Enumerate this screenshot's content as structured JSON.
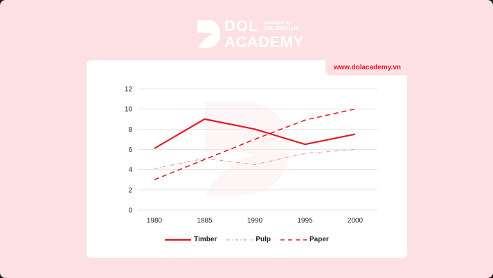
{
  "brand": {
    "name_line1": "DOL",
    "name_line2": "ACADEMY",
    "powered_line1": "powered by",
    "powered_line2": "DOL ĐÌNH LỰC",
    "logo_icon": "dol-d-logo-icon"
  },
  "card": {
    "url_badge": "www.dolacademy.vn"
  },
  "colors": {
    "background": "#fde0e4",
    "card": "#ffffff",
    "accent": "#e31b23",
    "grid": "#e6e6e6"
  },
  "chart_data": {
    "type": "line",
    "title": "",
    "xlabel": "",
    "ylabel": "",
    "x": [
      "1980",
      "1985",
      "1990",
      "1995",
      "2000"
    ],
    "yticks": [
      "0",
      "2",
      "4",
      "6",
      "8",
      "10",
      "12"
    ],
    "ylim": [
      0,
      12
    ],
    "grid": true,
    "legend_position": "bottom",
    "series": [
      {
        "name": "Timber",
        "style": "solid",
        "values": [
          6.1,
          9.0,
          8.0,
          6.5,
          7.5
        ]
      },
      {
        "name": "Pulp",
        "style": "dash-dot",
        "values": [
          4.1,
          5.1,
          4.5,
          5.6,
          6.0
        ]
      },
      {
        "name": "Paper",
        "style": "dashed",
        "values": [
          3.0,
          5.0,
          7.0,
          8.9,
          10.0
        ]
      }
    ]
  },
  "legend": {
    "items": [
      {
        "label": "Timber"
      },
      {
        "label": "Pulp"
      },
      {
        "label": "Paper"
      }
    ]
  }
}
